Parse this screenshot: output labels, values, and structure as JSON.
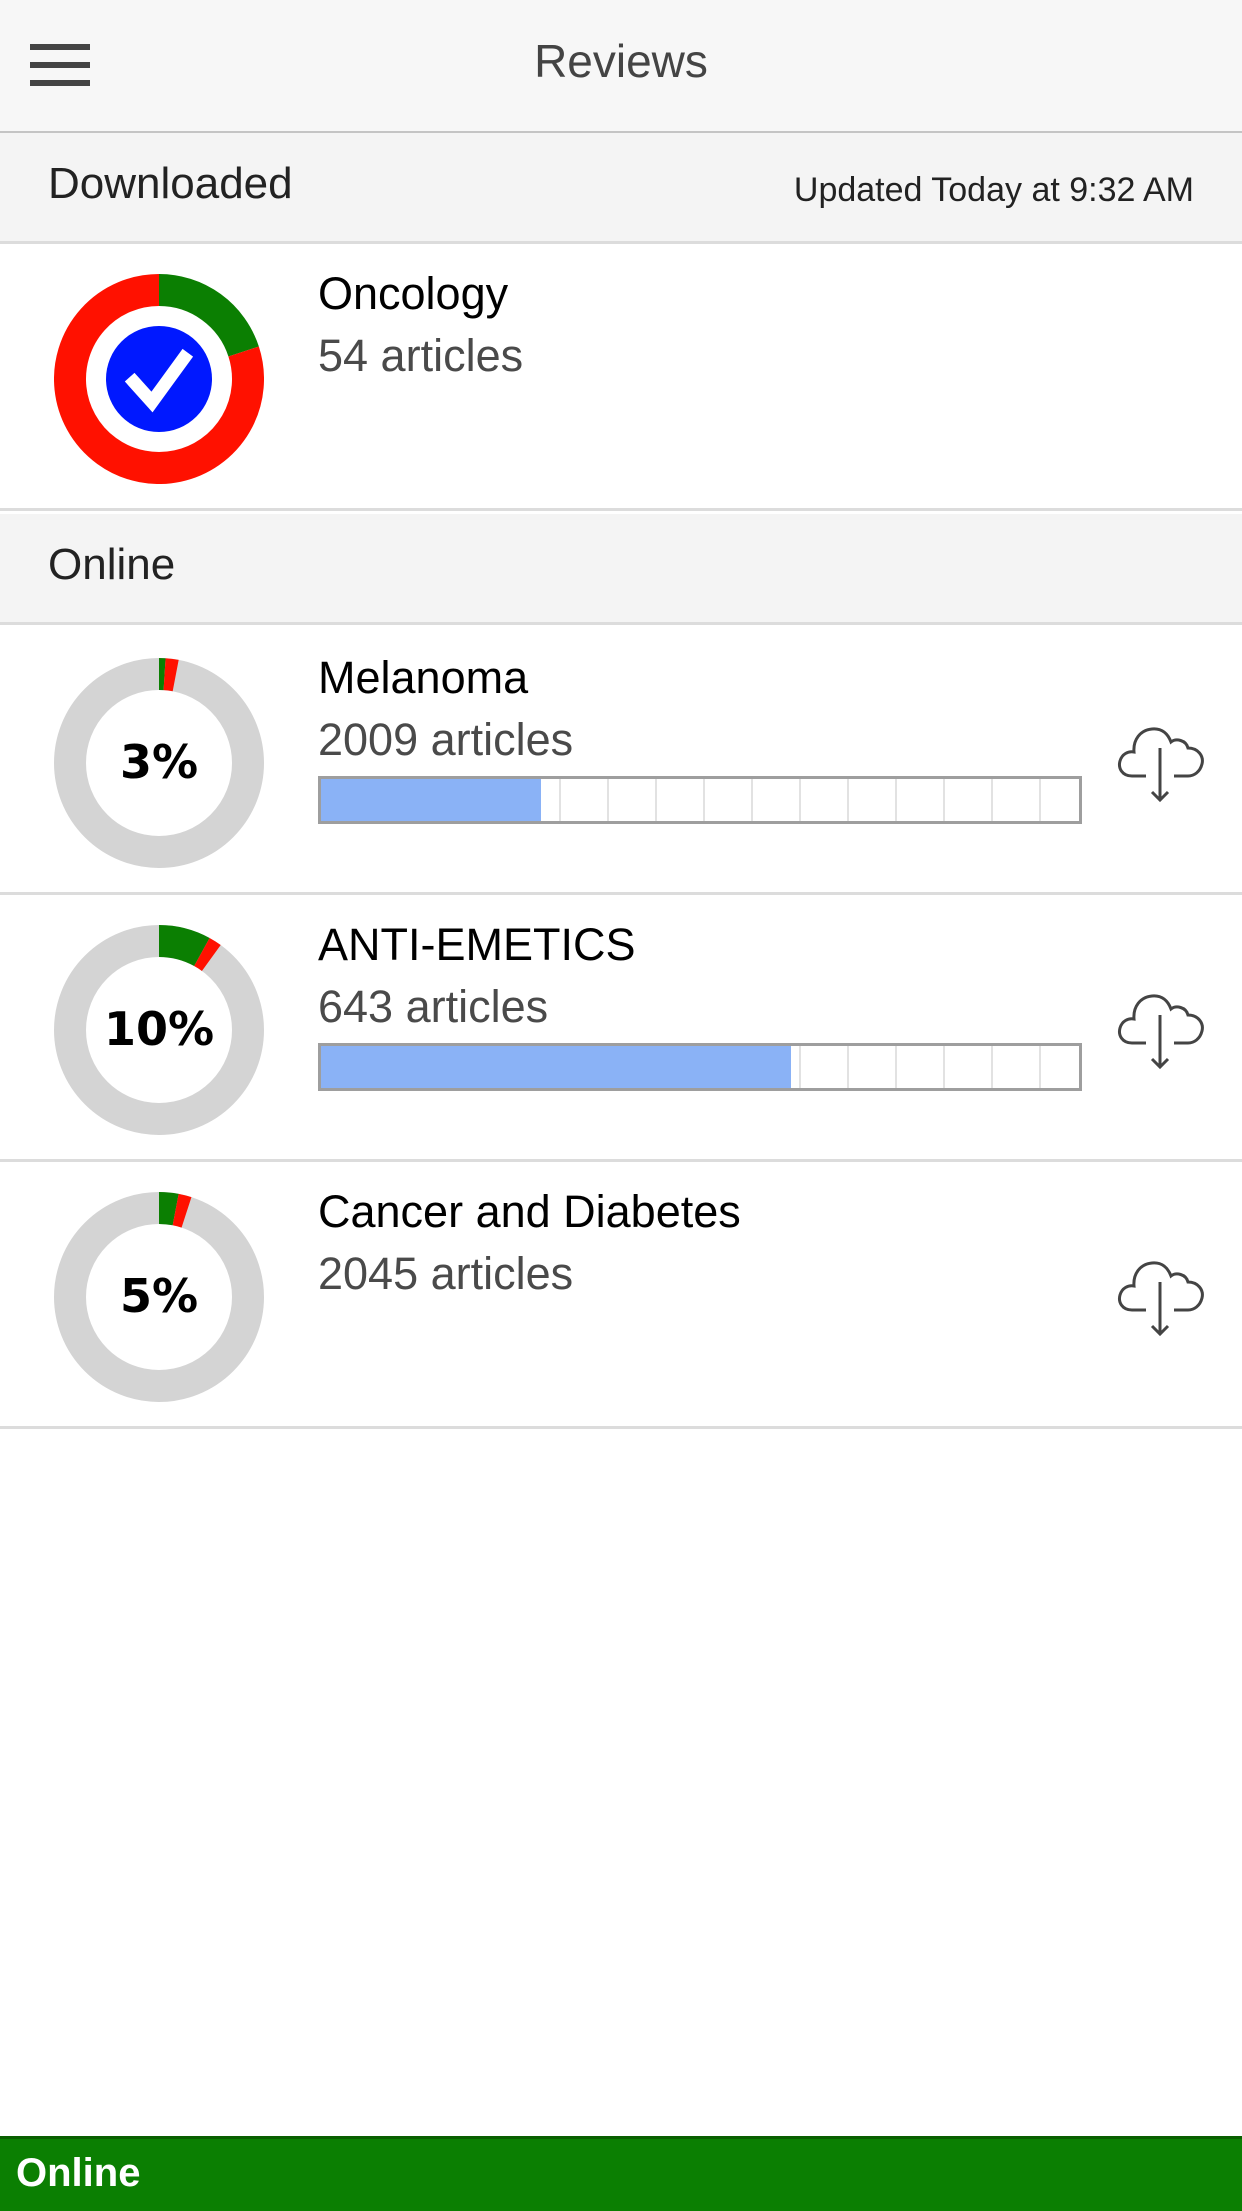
{
  "header": {
    "title": "Reviews",
    "menu_icon": "hamburger-menu-icon"
  },
  "downloaded": {
    "label": "Downloaded",
    "updated": "Updated Today at 9:32 AM",
    "items": [
      {
        "name": "Oncology",
        "count": "54 articles",
        "status_icon": "checkmark-icon",
        "ring_green_pct": 20,
        "ring_red_pct": 80
      }
    ]
  },
  "online": {
    "label": "Online",
    "items": [
      {
        "name": "Melanoma",
        "count": "2009 articles",
        "percent": "3%",
        "green_pct": 1,
        "red_pct": 2,
        "progress_pct": 29,
        "action_icon": "cloud-download-icon"
      },
      {
        "name": "ANTI-EMETICS",
        "count": "643 articles",
        "percent": "10%",
        "green_pct": 8,
        "red_pct": 2,
        "progress_pct": 62,
        "action_icon": "cloud-download-icon"
      },
      {
        "name": "Cancer and Diabetes",
        "count": "2045 articles",
        "percent": "5%",
        "green_pct": 3,
        "red_pct": 2,
        "progress_pct": null,
        "action_icon": "cloud-download-icon"
      }
    ]
  },
  "footer": {
    "status": "Online"
  },
  "colors": {
    "green": "#0b7f02",
    "red": "#ff1100",
    "blue": "#0018ff",
    "grey_ring": "#d4d4d4",
    "progress": "#8ab2f6",
    "status_bar": "#0b7f02"
  }
}
